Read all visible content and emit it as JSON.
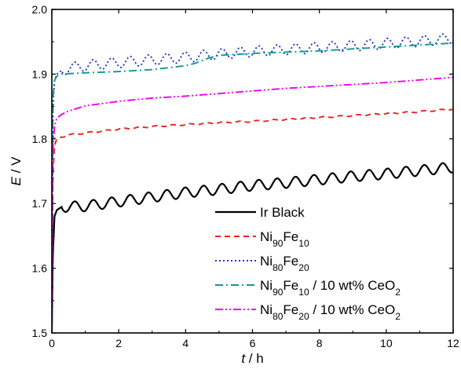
{
  "chart_data": {
    "type": "line",
    "xlabel": {
      "var": "t",
      "unit": "h"
    },
    "ylabel": {
      "var": "E",
      "unit": "V"
    },
    "xlim": [
      0,
      12
    ],
    "ylim": [
      1.5,
      2.0
    ],
    "xticks": [
      0,
      2,
      4,
      6,
      8,
      10,
      12
    ],
    "yticks": [
      "1.5",
      "1.6",
      "1.7",
      "1.8",
      "1.9",
      "2.0"
    ],
    "grid": false,
    "legend_position": "bottom-right",
    "series": [
      {
        "name": "Ir Black",
        "legend": [
          {
            "t": "Ir Black"
          }
        ],
        "color": "#000000",
        "dash": "solid",
        "x": [
          0,
          0.03,
          0.08,
          0.15,
          0.3,
          0.5,
          1,
          2,
          3,
          4,
          5,
          6,
          7,
          8,
          9,
          10,
          11,
          12
        ],
        "y": [
          1.5,
          1.62,
          1.68,
          1.69,
          1.695,
          1.695,
          1.696,
          1.703,
          1.71,
          1.717,
          1.722,
          1.728,
          1.732,
          1.737,
          1.742,
          1.746,
          1.751,
          1.756
        ],
        "oscillation_amplitude": 0.008,
        "oscillation_period_h": 0.55
      },
      {
        "name": "Ni90Fe10",
        "legend": [
          {
            "t": "Ni"
          },
          {
            "t": "90",
            "sub": true
          },
          {
            "t": "Fe"
          },
          {
            "t": "10",
            "sub": true
          }
        ],
        "color": "#e8231b",
        "dash": "dashed",
        "x": [
          0,
          0.03,
          0.08,
          0.15,
          0.3,
          0.5,
          1,
          2,
          3,
          4,
          5,
          6,
          7,
          8,
          9,
          10,
          11,
          12
        ],
        "y": [
          1.5,
          1.74,
          1.79,
          1.8,
          1.803,
          1.806,
          1.809,
          1.815,
          1.819,
          1.822,
          1.825,
          1.827,
          1.83,
          1.833,
          1.836,
          1.839,
          1.842,
          1.846
        ],
        "oscillation_amplitude": 0.001,
        "oscillation_period_h": 0.5
      },
      {
        "name": "Ni80Fe20",
        "legend": [
          {
            "t": "Ni"
          },
          {
            "t": "80",
            "sub": true
          },
          {
            "t": "Fe"
          },
          {
            "t": "20",
            "sub": true
          }
        ],
        "color": "#2233cc",
        "dash": "dotted",
        "x": [
          0,
          0.03,
          0.08,
          0.15,
          0.3,
          0.5,
          1,
          2,
          3,
          4,
          5,
          6,
          7,
          8,
          9,
          10,
          11,
          12
        ],
        "y": [
          1.5,
          1.85,
          1.89,
          1.9,
          1.906,
          1.909,
          1.913,
          1.918,
          1.922,
          1.926,
          1.931,
          1.935,
          1.938,
          1.941,
          1.944,
          1.947,
          1.951,
          1.955
        ],
        "oscillation_amplitude": 0.008,
        "oscillation_period_h": 0.55
      },
      {
        "name": "Ni90Fe10 / 10 wt% CeO2",
        "legend": [
          {
            "t": "Ni"
          },
          {
            "t": "90",
            "sub": true
          },
          {
            "t": "Fe"
          },
          {
            "t": "10",
            "sub": true
          },
          {
            "t": " / 10 wt% CeO"
          },
          {
            "t": "2",
            "sub": true
          }
        ],
        "color": "#11998e",
        "dash": "dashdot",
        "x": [
          0,
          0.03,
          0.08,
          0.15,
          0.3,
          0.6,
          1,
          2,
          3,
          4,
          4.3,
          4.7,
          5,
          6,
          7,
          8,
          9,
          10,
          11,
          12
        ],
        "y": [
          1.5,
          1.86,
          1.89,
          1.897,
          1.9,
          1.901,
          1.902,
          1.904,
          1.907,
          1.913,
          1.917,
          1.925,
          1.929,
          1.932,
          1.934,
          1.936,
          1.939,
          1.942,
          1.945,
          1.948
        ],
        "oscillation_amplitude": 0.0,
        "oscillation_period_h": 1
      },
      {
        "name": "Ni80Fe20 / 10 wt% CeO2",
        "legend": [
          {
            "t": "Ni"
          },
          {
            "t": "80",
            "sub": true
          },
          {
            "t": "Fe"
          },
          {
            "t": "20",
            "sub": true
          },
          {
            "t": " / 10 wt% CeO"
          },
          {
            "t": "2",
            "sub": true
          }
        ],
        "color": "#ee00ee",
        "dash": "dashdotdot",
        "x": [
          0,
          0.03,
          0.08,
          0.15,
          0.3,
          0.5,
          1,
          2,
          3,
          4,
          5,
          6,
          7,
          8,
          9,
          10,
          11,
          12
        ],
        "y": [
          1.5,
          1.78,
          1.82,
          1.832,
          1.838,
          1.843,
          1.851,
          1.858,
          1.863,
          1.866,
          1.87,
          1.874,
          1.878,
          1.881,
          1.884,
          1.887,
          1.891,
          1.895
        ],
        "oscillation_amplitude": 0.0,
        "oscillation_period_h": 1
      }
    ]
  }
}
